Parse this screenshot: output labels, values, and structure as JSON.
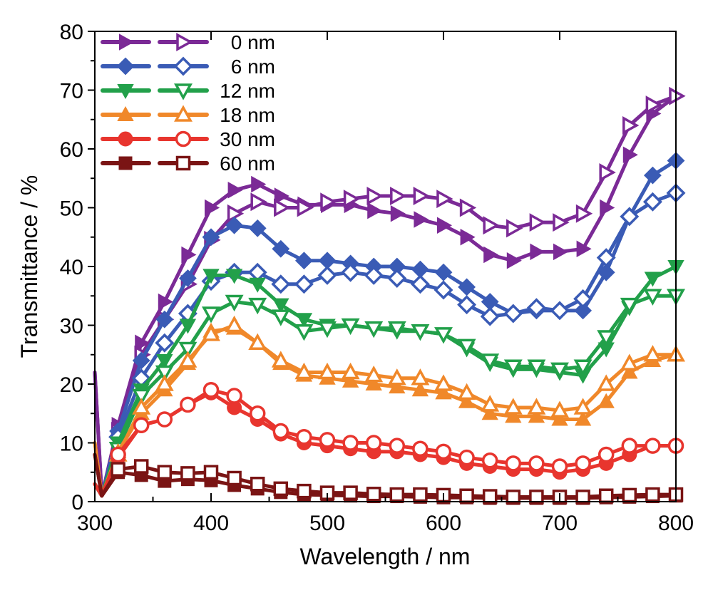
{
  "chart_data": {
    "type": "line",
    "title": "",
    "xlabel": "Wavelength / nm",
    "ylabel": "Transmittance / %",
    "xlim": [
      300,
      800
    ],
    "ylim": [
      0,
      80
    ],
    "xticks": [
      300,
      400,
      500,
      600,
      700,
      800
    ],
    "yticks": [
      0,
      10,
      20,
      30,
      40,
      50,
      60,
      70,
      80
    ],
    "grid": false,
    "legend_position": "top-left",
    "x": [
      320,
      340,
      360,
      380,
      400,
      420,
      440,
      460,
      480,
      500,
      520,
      540,
      560,
      580,
      600,
      620,
      640,
      660,
      680,
      700,
      720,
      740,
      760,
      780,
      800
    ],
    "series": [
      {
        "name": "0 nm",
        "variant": "filled",
        "marker": "triangle-right",
        "color": "#7b2a96",
        "start": [
          [
            300,
            22
          ],
          [
            306,
            1
          ]
        ],
        "values": [
          13,
          27,
          34,
          42,
          50,
          53,
          54,
          52,
          50.5,
          50.5,
          50.5,
          49.5,
          49,
          48,
          47,
          45,
          42,
          41,
          42.5,
          42.5,
          43,
          50,
          59,
          66,
          69
        ]
      },
      {
        "name": "0 nm",
        "variant": "hollow",
        "marker": "triangle-right",
        "color": "#7b2a96",
        "start": [
          [
            300,
            22
          ],
          [
            306,
            1
          ]
        ],
        "values": [
          12,
          25,
          31,
          37,
          44.5,
          49,
          51,
          50,
          50,
          51,
          51.5,
          52,
          52,
          52,
          51.5,
          50,
          47,
          46.5,
          47.5,
          47.5,
          49,
          56,
          64,
          67.5,
          69
        ]
      },
      {
        "name": "6 nm",
        "variant": "filled",
        "marker": "diamond",
        "color": "#3a5bb5",
        "start": [
          [
            300,
            3
          ],
          [
            306,
            1
          ]
        ],
        "values": [
          12,
          24,
          31,
          38,
          45,
          47,
          46.5,
          43,
          41,
          41,
          40.5,
          40,
          40,
          39.5,
          39,
          36.5,
          34,
          32,
          32.5,
          32.5,
          32.5,
          39,
          48.5,
          55.5,
          58
        ]
      },
      {
        "name": "6 nm",
        "variant": "hollow",
        "marker": "diamond",
        "color": "#3a5bb5",
        "start": [
          [
            300,
            3
          ],
          [
            306,
            1
          ]
        ],
        "values": [
          11,
          21,
          27,
          32,
          37.5,
          39,
          39,
          37,
          37,
          38.5,
          39,
          38.5,
          38,
          37,
          36,
          33.5,
          31.5,
          32,
          33,
          32.5,
          34.5,
          41.5,
          48.5,
          51,
          52.5
        ]
      },
      {
        "name": "12 nm",
        "variant": "filled",
        "marker": "triangle-down",
        "color": "#22a04a",
        "start": [
          [
            300,
            3
          ],
          [
            306,
            1
          ]
        ],
        "values": [
          10,
          19,
          24,
          30,
          38.5,
          38.5,
          37,
          33.5,
          31,
          30,
          30,
          29.5,
          29,
          29,
          28.5,
          26,
          23.5,
          22.5,
          22.5,
          22,
          21.5,
          26,
          33,
          38,
          40
        ]
      },
      {
        "name": "12 nm",
        "variant": "hollow",
        "marker": "triangle-down",
        "color": "#22a04a",
        "start": [
          [
            300,
            3
          ],
          [
            306,
            1
          ]
        ],
        "values": [
          9,
          18,
          22,
          26,
          32,
          34,
          33.5,
          31.5,
          29,
          29.5,
          30,
          29.5,
          29.5,
          29,
          28.5,
          26.5,
          24,
          23,
          23,
          22.5,
          23,
          28,
          33.5,
          35,
          35
        ]
      },
      {
        "name": "18 nm",
        "variant": "filled",
        "marker": "triangle-up",
        "color": "#f0882a",
        "start": [
          [
            300,
            10
          ],
          [
            306,
            1
          ]
        ],
        "values": [
          8.5,
          15,
          19,
          23.5,
          29,
          29.5,
          27,
          23.5,
          21.5,
          21,
          20.5,
          20,
          19.5,
          19,
          18.5,
          17,
          15,
          14.5,
          14.5,
          14,
          14,
          17,
          22,
          24,
          25
        ]
      },
      {
        "name": "18 nm",
        "variant": "hollow",
        "marker": "triangle-up",
        "color": "#f0882a",
        "start": [
          [
            300,
            10
          ],
          [
            306,
            1
          ]
        ],
        "values": [
          8,
          16,
          20,
          24,
          28.5,
          30,
          27,
          24,
          22,
          22,
          22,
          21.5,
          21,
          21,
          20,
          18.5,
          16.5,
          16,
          16,
          15.5,
          16,
          20,
          23.5,
          25,
          25
        ]
      },
      {
        "name": "30 nm",
        "variant": "filled",
        "marker": "circle",
        "color": "#e8352e",
        "start": [
          [
            300,
            3
          ],
          [
            306,
            1
          ]
        ],
        "values": [
          7.5,
          13,
          14,
          16.5,
          18.5,
          16,
          14,
          11.5,
          10,
          9.5,
          9,
          8.5,
          8.5,
          8,
          7.5,
          6.5,
          6,
          5.5,
          5.5,
          5,
          5.5,
          6.5,
          8,
          9.5,
          9.5
        ]
      },
      {
        "name": "30 nm",
        "variant": "hollow",
        "marker": "circle",
        "color": "#e8352e",
        "start": [
          [
            300,
            3
          ],
          [
            306,
            1
          ]
        ],
        "values": [
          8,
          13,
          14,
          16.5,
          19,
          18,
          15,
          12,
          11,
          10.5,
          10,
          10,
          9.5,
          9,
          8.5,
          7.5,
          7,
          6.5,
          6.5,
          6,
          6.5,
          8,
          9.5,
          9.5,
          9.5
        ]
      },
      {
        "name": "60 nm",
        "variant": "filled",
        "marker": "square",
        "color": "#7a1414",
        "start": [
          [
            300,
            8
          ],
          [
            306,
            1
          ]
        ],
        "values": [
          5,
          4.5,
          3.5,
          3.8,
          3.6,
          2.8,
          2.2,
          1.6,
          1.2,
          1.1,
          1,
          0.9,
          0.9,
          0.8,
          0.7,
          0.7,
          0.6,
          0.6,
          0.6,
          0.6,
          0.6,
          0.7,
          0.8,
          0.9,
          1
        ]
      },
      {
        "name": "60 nm",
        "variant": "hollow",
        "marker": "square",
        "color": "#7a1414",
        "start": [
          [
            300,
            8
          ],
          [
            306,
            1
          ]
        ],
        "values": [
          5.5,
          6,
          5,
          4.8,
          5,
          4,
          3,
          2.2,
          1.8,
          1.5,
          1.5,
          1.3,
          1.2,
          1.2,
          1.1,
          1,
          0.9,
          0.8,
          0.8,
          0.8,
          0.8,
          1,
          1.1,
          1.2,
          1.2
        ]
      }
    ],
    "legend": [
      {
        "label": "0 nm",
        "marker": "triangle-right",
        "color": "#7b2a96"
      },
      {
        "label": "6 nm",
        "marker": "diamond",
        "color": "#3a5bb5"
      },
      {
        "label": "12 nm",
        "marker": "triangle-down",
        "color": "#22a04a"
      },
      {
        "label": "18 nm",
        "marker": "triangle-up",
        "color": "#f0882a"
      },
      {
        "label": "30 nm",
        "marker": "circle",
        "color": "#e8352e"
      },
      {
        "label": "60 nm",
        "marker": "square",
        "color": "#7a1414"
      }
    ]
  }
}
